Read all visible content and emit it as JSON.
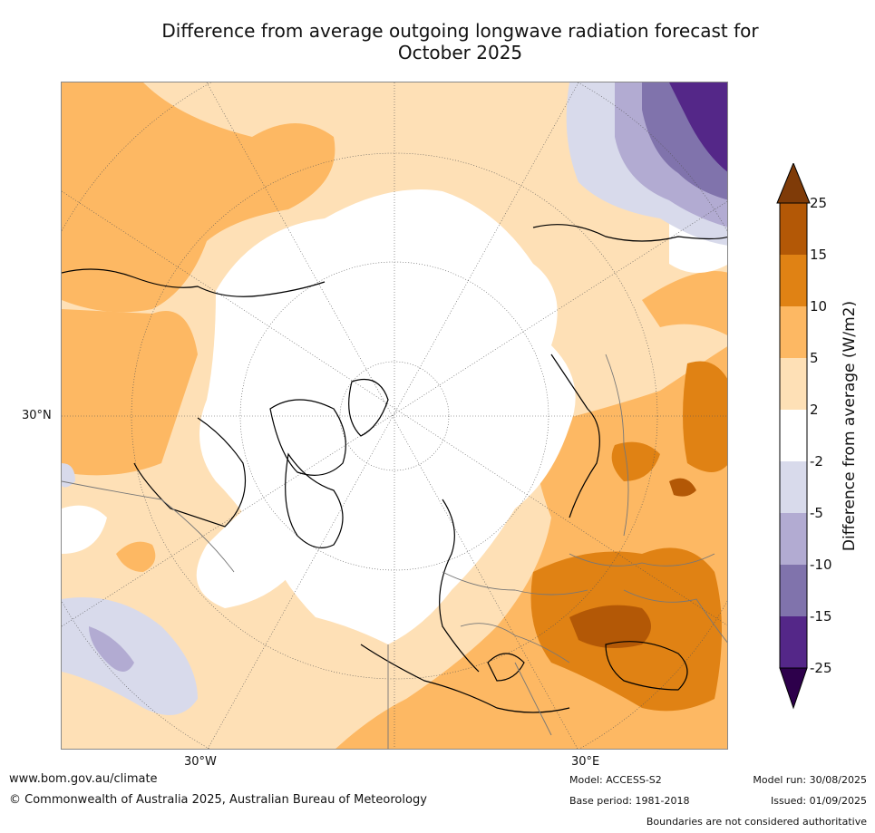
{
  "title_line1": "Difference from average outgoing longwave radiation forecast for",
  "title_line2": "October 2025",
  "map": {
    "labels": {
      "lat30": "30°N",
      "lon30w": "30°W",
      "lon30e": "30°E"
    }
  },
  "colorbar": {
    "title": "Difference from average (W/m2)",
    "ticks": [
      "25",
      "15",
      "10",
      "5",
      "2",
      "-2",
      "-5",
      "-10",
      "-15",
      "-25"
    ],
    "colors": {
      "over": "#7f3b08",
      "bands": [
        "#b35806",
        "#e08214",
        "#fdb863",
        "#fee0b6",
        "#ffffff",
        "#d8daeb",
        "#b2abd2",
        "#8073ac",
        "#542788"
      ],
      "under": "#2d004b"
    }
  },
  "footer": {
    "url": "www.bom.gov.au/climate",
    "copyright": "© Commonwealth of Australia 2025, Australian Bureau of Meteorology",
    "model": "Model: ACCESS-S2",
    "base_period": "Base period: 1981-2018",
    "model_run": "Model run: 30/08/2025",
    "issued": "Issued: 01/09/2025",
    "disclaimer": "Boundaries are not considered authoritative"
  }
}
